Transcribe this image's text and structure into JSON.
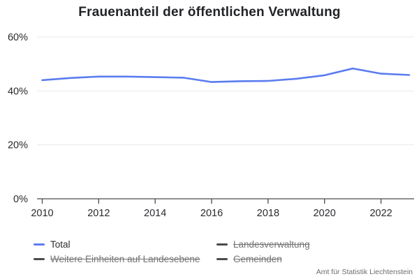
{
  "chart_data": {
    "type": "line",
    "title": "Frauenanteil der öffentlichen Verwaltung",
    "x": [
      2010,
      2011,
      2012,
      2013,
      2014,
      2015,
      2016,
      2017,
      2018,
      2019,
      2020,
      2021,
      2022,
      2023
    ],
    "xlim": [
      2010,
      2023
    ],
    "ylim": [
      0,
      60
    ],
    "yticks": [
      0,
      20,
      40,
      60
    ],
    "ytick_labels": [
      "0%",
      "20%",
      "40%",
      "60%"
    ],
    "xticks": [
      2010,
      2012,
      2014,
      2016,
      2018,
      2020,
      2022
    ],
    "grid": true,
    "legend_position": "bottom",
    "series": [
      {
        "name": "Total",
        "color": "#5b7cf0",
        "visible": true,
        "values": [
          44.0,
          44.8,
          45.3,
          45.3,
          45.1,
          44.9,
          43.3,
          43.6,
          43.7,
          44.5,
          45.8,
          48.3,
          46.4,
          45.9
        ]
      },
      {
        "name": "Weitere Einheiten auf Landesebene",
        "visible": false
      },
      {
        "name": "Landesverwaltung",
        "visible": false
      },
      {
        "name": "Gemeinden",
        "visible": false
      }
    ],
    "source": "Amt für Statistik Liechtenstein"
  },
  "legend": {
    "items": [
      {
        "label": "Total",
        "enabled": true
      },
      {
        "label": "Weitere Einheiten auf Landesebene",
        "enabled": false
      },
      {
        "label": "Landesverwaltung",
        "enabled": false
      },
      {
        "label": "Gemeinden",
        "enabled": false
      }
    ]
  },
  "colors": {
    "line_total": "#5b7cf0",
    "disabled_marker": "#4a4a4a",
    "axis": "#4a4a4c",
    "grid": "#e8e8ea",
    "text": "#2a2a2e",
    "muted_text": "#747477"
  }
}
